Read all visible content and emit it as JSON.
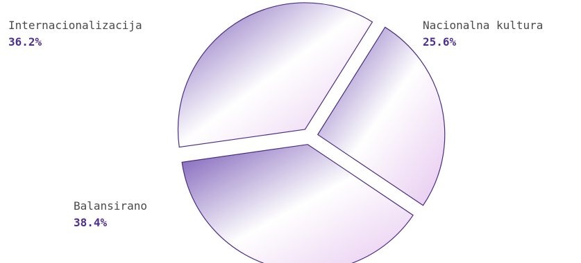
{
  "chart_data": {
    "type": "pie",
    "slices": [
      {
        "label": "Nacionalna kultura",
        "value": 25.6,
        "value_label": "25.6%"
      },
      {
        "label": "Balansirano",
        "value": 38.4,
        "value_label": "38.4%"
      },
      {
        "label": "Internacionalizacija",
        "value": 36.2,
        "value_label": "36.2%"
      }
    ],
    "exploded": true,
    "colors": {
      "dark": "#7a5bb7",
      "light": "#ffffff",
      "pink": "#e6c8ef",
      "stroke": "#4a2c82",
      "label_value": "#4b2e8f",
      "label_name": "#4a4a4a"
    }
  }
}
